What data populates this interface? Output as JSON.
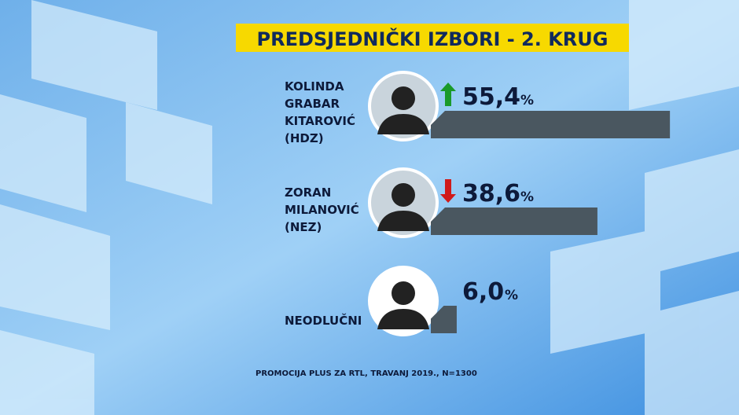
{
  "chart_data": {
    "type": "bar",
    "title": "PREDSJEDNIČKI IZBORI - 2. KRUG",
    "categories": [
      "KOLINDA\nGRABAR\nKITAROVIĆ\n(HDZ)",
      "ZORAN\nMILANOVIĆ\n(NEZ)",
      "NEODLUČNI"
    ],
    "values": [
      55.4,
      38.6,
      6.0
    ],
    "value_labels": [
      "55,4",
      "38,6",
      "6,0"
    ],
    "unit": "%",
    "trend": [
      "up",
      "down",
      null
    ],
    "color": "#4a5760",
    "source": "PROMOCIJA PLUS ZA RTL, TRAVANJ 2019., N=1300"
  }
}
